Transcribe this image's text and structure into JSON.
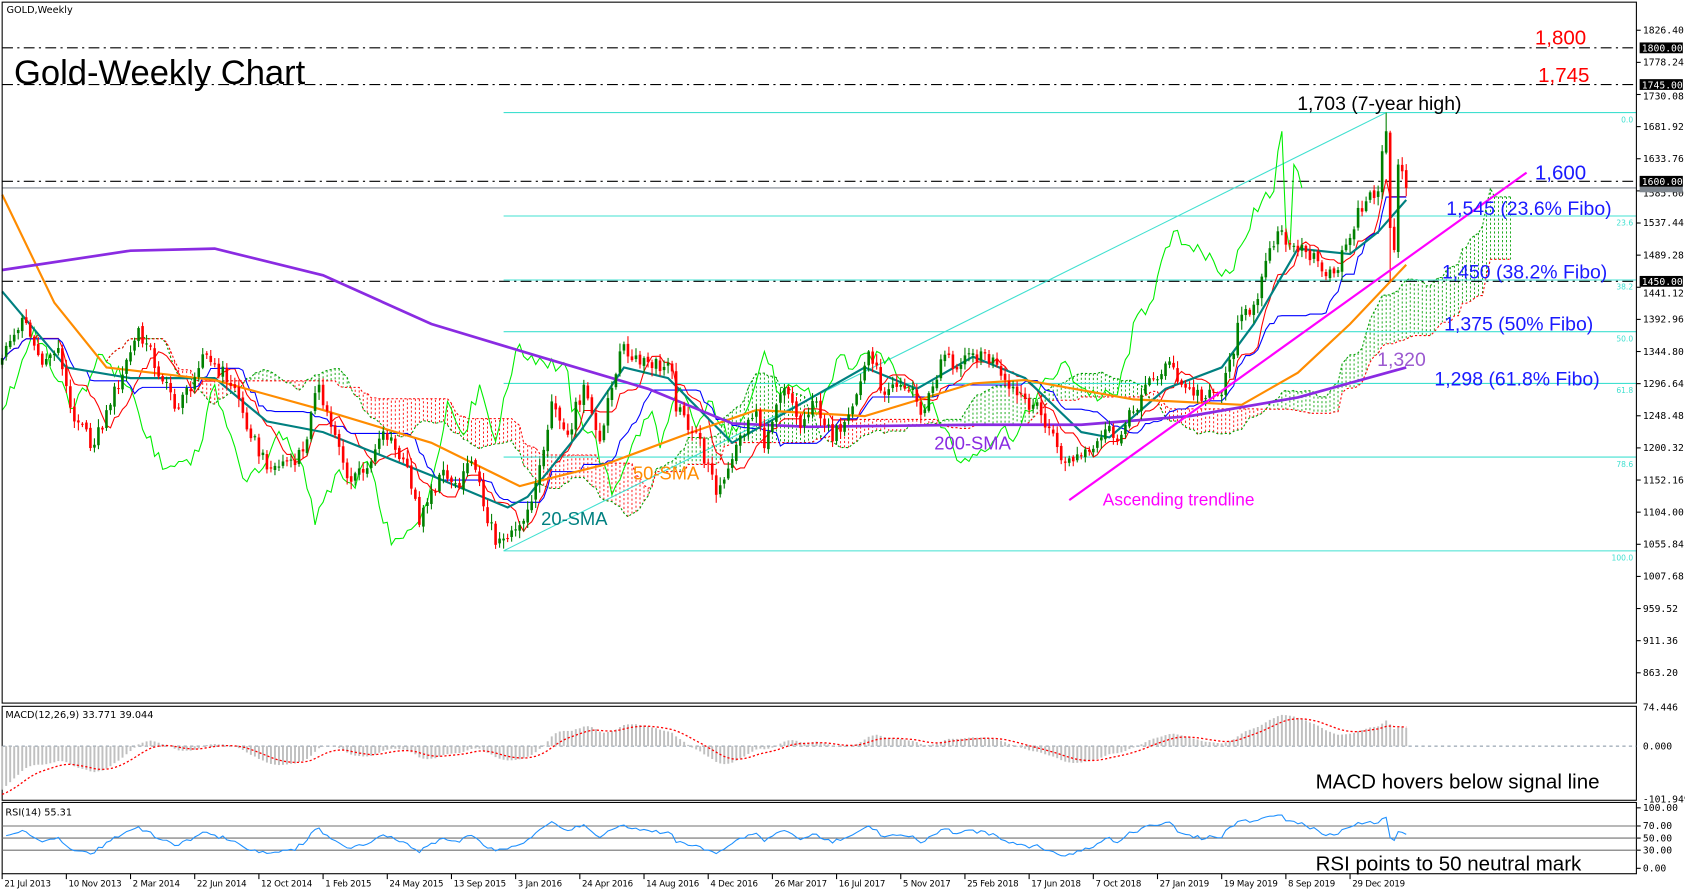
{
  "header": {
    "symbol_label": "GOLD,Weekly",
    "title": "Gold-Weekly Chart"
  },
  "colors": {
    "bull": "#008000",
    "bear": "#ff0000",
    "sma20": "#008080",
    "sma50": "#ff8c00",
    "sma200": "#8a2be2",
    "tenkan": "#ff0000",
    "kijun": "#0000ff",
    "chikou": "#00ee00",
    "fibo": "#40e0d0",
    "trendline": "#ff00ff",
    "annotation_red": "#ff0000",
    "annotation_blue": "#1a1aff",
    "annotation_purple": "#9b59d0",
    "macd_hist": "#c0c0c0",
    "macd_signal": "#ff0000",
    "rsi": "#1e90ff"
  },
  "chart_data": [
    {
      "type": "candlestick",
      "title": "Gold-Weekly Chart",
      "timeframe": "weekly",
      "ylim": [
        863.2,
        1826.4
      ],
      "y_ticks": [
        "1826.40",
        "1778.24",
        "1730.08",
        "1681.92",
        "1633.76",
        "1585.60",
        "1537.44",
        "1489.28",
        "1441.12",
        "1392.96",
        "1344.80",
        "1296.64",
        "1248.48",
        "1200.32",
        "1152.16",
        "1104.00",
        "1055.84",
        "1007.68",
        "959.52",
        "911.36",
        "863.20"
      ],
      "highlighted_levels": [
        "1800.00",
        "1745.00",
        "1600.00",
        "1450.00"
      ],
      "x_ticks": [
        "21 Jul 2013",
        "10 Nov 2013",
        "2 Mar 2014",
        "22 Jun 2014",
        "12 Oct 2014",
        "1 Feb 2015",
        "24 May 2015",
        "13 Sep 2015",
        "3 Jan 2016",
        "24 Apr 2016",
        "14 Aug 2016",
        "4 Dec 2016",
        "26 Mar 2017",
        "16 Jul 2017",
        "5 Nov 2017",
        "25 Feb 2018",
        "17 Jun 2018",
        "7 Oct 2018",
        "27 Jan 2019",
        "19 May 2019",
        "8 Sep 2019",
        "29 Dec 2019"
      ],
      "close_points": [
        [
          "2013-07-21",
          1335
        ],
        [
          "2013-08-25",
          1395
        ],
        [
          "2013-09-29",
          1325
        ],
        [
          "2013-10-27",
          1350
        ],
        [
          "2013-11-24",
          1240
        ],
        [
          "2013-12-29",
          1205
        ],
        [
          "2014-01-26",
          1265
        ],
        [
          "2014-03-16",
          1380
        ],
        [
          "2014-04-27",
          1300
        ],
        [
          "2014-05-25",
          1260
        ],
        [
          "2014-06-29",
          1320
        ],
        [
          "2014-07-13",
          1340
        ],
        [
          "2014-08-31",
          1290
        ],
        [
          "2014-09-28",
          1215
        ],
        [
          "2014-11-02",
          1170
        ],
        [
          "2014-11-30",
          1180
        ],
        [
          "2014-12-28",
          1195
        ],
        [
          "2015-01-25",
          1295
        ],
        [
          "2015-03-15",
          1155
        ],
        [
          "2015-04-26",
          1180
        ],
        [
          "2015-05-17",
          1225
        ],
        [
          "2015-06-28",
          1172
        ],
        [
          "2015-07-19",
          1085
        ],
        [
          "2015-08-23",
          1160
        ],
        [
          "2015-09-27",
          1140
        ],
        [
          "2015-10-18",
          1180
        ],
        [
          "2015-11-29",
          1055
        ],
        [
          "2015-12-20",
          1065
        ],
        [
          "2016-01-31",
          1120
        ],
        [
          "2016-03-06",
          1270
        ],
        [
          "2016-04-03",
          1220
        ],
        [
          "2016-05-01",
          1295
        ],
        [
          "2016-05-29",
          1210
        ],
        [
          "2016-07-03",
          1345
        ],
        [
          "2016-08-14",
          1335
        ],
        [
          "2016-10-02",
          1315
        ],
        [
          "2016-10-09",
          1255
        ],
        [
          "2016-11-13",
          1225
        ],
        [
          "2016-12-18",
          1130
        ],
        [
          "2017-01-22",
          1205
        ],
        [
          "2017-02-26",
          1255
        ],
        [
          "2017-03-12",
          1200
        ],
        [
          "2017-04-16",
          1290
        ],
        [
          "2017-05-14",
          1230
        ],
        [
          "2017-06-11",
          1270
        ],
        [
          "2017-07-09",
          1210
        ],
        [
          "2017-08-27",
          1300
        ],
        [
          "2017-09-10",
          1345
        ],
        [
          "2017-10-08",
          1280
        ],
        [
          "2017-11-26",
          1290
        ],
        [
          "2017-12-10",
          1250
        ],
        [
          "2018-01-21",
          1340
        ],
        [
          "2018-02-11",
          1318
        ],
        [
          "2018-03-25",
          1345
        ],
        [
          "2018-04-22",
          1325
        ],
        [
          "2018-05-20",
          1292
        ],
        [
          "2018-06-24",
          1265
        ],
        [
          "2018-07-22",
          1230
        ],
        [
          "2018-08-19",
          1178
        ],
        [
          "2018-09-23",
          1198
        ],
        [
          "2018-10-28",
          1228
        ],
        [
          "2018-11-25",
          1220
        ],
        [
          "2018-12-30",
          1280
        ],
        [
          "2019-02-17",
          1330
        ],
        [
          "2019-03-10",
          1295
        ],
        [
          "2019-04-21",
          1275
        ],
        [
          "2019-05-19",
          1280
        ],
        [
          "2019-06-23",
          1400
        ],
        [
          "2019-07-14",
          1415
        ],
        [
          "2019-08-25",
          1525
        ],
        [
          "2019-09-08",
          1505
        ],
        [
          "2019-10-06",
          1505
        ],
        [
          "2019-11-10",
          1465
        ],
        [
          "2019-12-01",
          1462
        ],
        [
          "2019-12-29",
          1515
        ],
        [
          "2020-01-12",
          1560
        ],
        [
          "2020-01-26",
          1570
        ],
        [
          "2020-02-16",
          1585
        ],
        [
          "2020-02-23",
          1645
        ],
        [
          "2020-03-01",
          1675
        ],
        [
          "2020-03-08",
          1530
        ],
        [
          "2020-03-15",
          1497
        ],
        [
          "2020-03-22",
          1625
        ],
        [
          "2020-03-29",
          1615
        ],
        [
          "2020-04-05",
          1590
        ]
      ],
      "extremes": [
        {
          "date": "2020-03-01",
          "high": 1703
        },
        {
          "date": "2020-03-08",
          "low": 1451
        }
      ],
      "series": [
        {
          "name": "20-SMA",
          "points": [
            [
              "2013-07-21",
              1435
            ],
            [
              "2013-11-10",
              1321
            ],
            [
              "2014-03-02",
              1305
            ],
            [
              "2014-07-27",
              1305
            ],
            [
              "2014-10-26",
              1240
            ],
            [
              "2015-02-01",
              1224
            ],
            [
              "2015-08-09",
              1159
            ],
            [
              "2015-12-20",
              1111
            ],
            [
              "2016-01-24",
              1127
            ],
            [
              "2016-04-24",
              1224
            ],
            [
              "2016-07-10",
              1321
            ],
            [
              "2016-09-25",
              1305
            ],
            [
              "2017-01-15",
              1208
            ],
            [
              "2017-05-28",
              1273
            ],
            [
              "2017-09-03",
              1321
            ],
            [
              "2017-12-03",
              1289
            ],
            [
              "2018-03-11",
              1337
            ],
            [
              "2018-06-10",
              1305
            ],
            [
              "2018-09-16",
              1224
            ],
            [
              "2018-11-04",
              1216
            ],
            [
              "2019-02-10",
              1289
            ],
            [
              "2019-05-19",
              1321
            ],
            [
              "2019-07-14",
              1386
            ],
            [
              "2019-09-29",
              1499
            ],
            [
              "2019-12-29",
              1491
            ],
            [
              "2020-02-16",
              1524
            ],
            [
              "2020-04-05",
              1572
            ]
          ]
        },
        {
          "name": "50-SMA",
          "points": [
            [
              "2013-07-21",
              1580
            ],
            [
              "2013-10-20",
              1418
            ],
            [
              "2014-01-19",
              1321
            ],
            [
              "2014-07-27",
              1302
            ],
            [
              "2015-02-01",
              1257
            ],
            [
              "2015-08-09",
              1208
            ],
            [
              "2016-01-10",
              1143
            ],
            [
              "2016-02-14",
              1151
            ],
            [
              "2016-06-05",
              1175
            ],
            [
              "2016-11-06",
              1224
            ],
            [
              "2017-02-26",
              1257
            ],
            [
              "2017-09-03",
              1248
            ],
            [
              "2018-03-11",
              1297
            ],
            [
              "2018-06-10",
              1302
            ],
            [
              "2018-12-16",
              1273
            ],
            [
              "2019-06-23",
              1265
            ],
            [
              "2019-09-29",
              1313
            ],
            [
              "2019-12-29",
              1386
            ],
            [
              "2020-04-05",
              1475
            ]
          ]
        },
        {
          "name": "200-SMA",
          "points": [
            [
              "2013-07-21",
              1467
            ],
            [
              "2014-03-02",
              1496
            ],
            [
              "2014-07-27",
              1499
            ],
            [
              "2015-02-01",
              1459
            ],
            [
              "2015-08-09",
              1386
            ],
            [
              "2016-02-14",
              1337
            ],
            [
              "2016-08-21",
              1289
            ],
            [
              "2017-01-15",
              1237
            ],
            [
              "2017-05-28",
              1232
            ],
            [
              "2018-03-11",
              1235
            ],
            [
              "2018-09-16",
              1235
            ],
            [
              "2019-03-24",
              1248
            ],
            [
              "2019-09-29",
              1276
            ],
            [
              "2020-04-05",
              1321
            ]
          ]
        }
      ],
      "fibonacci": {
        "low": 1046,
        "high": 1703,
        "low_date": "2015-12-13",
        "high_date": "2020-03-01",
        "levels": [
          {
            "label": "0.0",
            "ratio": 0
          },
          {
            "label": "23.6",
            "ratio": 0.236
          },
          {
            "label": "38.2",
            "ratio": 0.382
          },
          {
            "label": "50.0",
            "ratio": 0.5
          },
          {
            "label": "61.8",
            "ratio": 0.618
          },
          {
            "label": "78.6",
            "ratio": 0.786
          },
          {
            "label": "100.0",
            "ratio": 1
          }
        ]
      },
      "horizontal_levels": [
        1800,
        1745,
        1600,
        1450
      ],
      "trendline": {
        "from": [
          "2018-08-26",
          1122
        ],
        "to": [
          "2020-11-01",
          1613
        ]
      },
      "annotations": {
        "r1800": "1,800",
        "r1745": "1,745",
        "high": "1,703 (7-year high)",
        "r1600": "1,600",
        "fib236": "1,545 (23.6% Fibo)",
        "fib382": "1,450 (38.2% Fibo)",
        "fib50": "1,375 (50% Fibo)",
        "r1320": "1,320",
        "fib618": "1,298 (61.8% Fibo)",
        "sma200": "200-SMA",
        "sma50": "50-SMA",
        "sma20": "20-SMA",
        "trendline": "Ascending trendline"
      }
    },
    {
      "type": "bar+line",
      "title": "MACD(12,26,9) 33.771 39.044",
      "ylim": [
        -101.949,
        74.446
      ],
      "y_ticks": [
        "74.446",
        "0.000",
        "-101.949"
      ],
      "main": 33.771,
      "signal": 39.044,
      "annotation": "MACD hovers below signal line"
    },
    {
      "type": "line",
      "title": "RSI(14) 55.31",
      "ylim": [
        0,
        100
      ],
      "y_ticks": [
        "100.00",
        "70.00",
        "50.00",
        "30.00",
        "0.00"
      ],
      "value": 55.31,
      "annotation": "RSI points to 50 neutral mark"
    }
  ]
}
